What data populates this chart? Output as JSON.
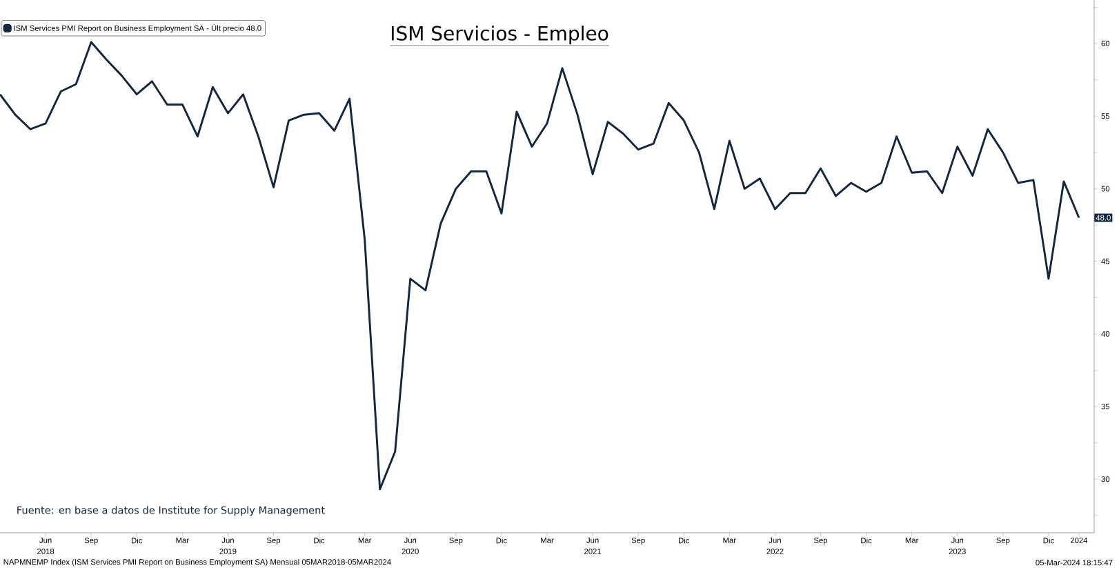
{
  "chart_data": {
    "type": "line",
    "title": "ISM Servicios - Empleo",
    "x": [
      "2018-03",
      "2018-04",
      "2018-05",
      "2018-06",
      "2018-07",
      "2018-08",
      "2018-09",
      "2018-10",
      "2018-11",
      "2018-12",
      "2019-01",
      "2019-02",
      "2019-03",
      "2019-04",
      "2019-05",
      "2019-06",
      "2019-07",
      "2019-08",
      "2019-09",
      "2019-10",
      "2019-11",
      "2019-12",
      "2020-01",
      "2020-02",
      "2020-03",
      "2020-04",
      "2020-05",
      "2020-06",
      "2020-07",
      "2020-08",
      "2020-09",
      "2020-10",
      "2020-11",
      "2020-12",
      "2021-01",
      "2021-02",
      "2021-03",
      "2021-04",
      "2021-05",
      "2021-06",
      "2021-07",
      "2021-08",
      "2021-09",
      "2021-10",
      "2021-11",
      "2021-12",
      "2022-01",
      "2022-02",
      "2022-03",
      "2022-04",
      "2022-05",
      "2022-06",
      "2022-07",
      "2022-08",
      "2022-09",
      "2022-10",
      "2022-11",
      "2022-12",
      "2023-01",
      "2023-02",
      "2023-03",
      "2023-04",
      "2023-05",
      "2023-06",
      "2023-07",
      "2023-08",
      "2023-09",
      "2023-10",
      "2023-11",
      "2023-12",
      "2024-01",
      "2024-02"
    ],
    "series": [
      {
        "name": "ISM Services PMI Report on Business Employment SA - Últ precio 48.0",
        "color": "#13283f",
        "values": [
          56.5,
          55.1,
          54.1,
          54.5,
          56.7,
          57.2,
          60.1,
          58.9,
          57.8,
          56.5,
          57.4,
          55.8,
          55.8,
          53.6,
          57.0,
          55.2,
          56.5,
          53.6,
          50.1,
          54.7,
          55.1,
          55.2,
          54.0,
          56.2,
          46.5,
          29.3,
          31.9,
          43.8,
          43.0,
          47.6,
          50.0,
          51.2,
          51.2,
          48.3,
          55.3,
          52.9,
          54.5,
          58.3,
          55.1,
          51.0,
          54.6,
          53.8,
          52.7,
          53.1,
          55.9,
          54.7,
          52.5,
          48.6,
          53.3,
          50.0,
          50.7,
          48.6,
          49.7,
          49.7,
          51.4,
          49.5,
          50.4,
          49.8,
          50.4,
          53.6,
          51.1,
          51.2,
          49.7,
          52.9,
          50.9,
          54.1,
          52.5,
          50.4,
          50.6,
          43.8,
          50.5,
          48.0
        ]
      }
    ],
    "xlim": [
      "2018-03",
      "2024-03"
    ],
    "ylim": [
      26.3,
      63
    ],
    "yticks": [
      {
        "value": 27.5,
        "label": null
      },
      30,
      {
        "value": 32.5,
        "label": null
      },
      35,
      {
        "value": 37.5,
        "label": null
      },
      40,
      {
        "value": 42.5,
        "label": null
      },
      45,
      {
        "value": 47.5,
        "label": null
      },
      50,
      {
        "value": 52.5,
        "label": null
      },
      55,
      {
        "value": 57.5,
        "label": null
      },
      60,
      {
        "value": 62.5,
        "label": null
      }
    ],
    "xticks": [
      {
        "value": "2018-06",
        "label": "Jun 2018"
      },
      {
        "value": "2018-09",
        "label": "Sep"
      },
      {
        "value": "2018-12",
        "label": "Dic"
      },
      {
        "value": "2019-03",
        "label": "Mar"
      },
      {
        "value": "2019-06",
        "label": "Jun 2019"
      },
      {
        "value": "2019-09",
        "label": "Sep"
      },
      {
        "value": "2019-12",
        "label": "Dic"
      },
      {
        "value": "2020-03",
        "label": "Mar"
      },
      {
        "value": "2020-06",
        "label": "Jun 2020"
      },
      {
        "value": "2020-09",
        "label": "Sep"
      },
      {
        "value": "2020-12",
        "label": "Dic"
      },
      {
        "value": "2021-03",
        "label": "Mar"
      },
      {
        "value": "2021-06",
        "label": "Jun 2021"
      },
      {
        "value": "2021-09",
        "label": "Sep"
      },
      {
        "value": "2021-12",
        "label": "Dic"
      },
      {
        "value": "2022-03",
        "label": "Mar"
      },
      {
        "value": "2022-06",
        "label": "Jun 2022"
      },
      {
        "value": "2022-09",
        "label": "Sep"
      },
      {
        "value": "2022-12",
        "label": "Dic"
      },
      {
        "value": "2023-03",
        "label": "Mar"
      },
      {
        "value": "2023-06",
        "label": "Jun 2023"
      },
      {
        "value": "2023-09",
        "label": "Sep"
      },
      {
        "value": "2023-12",
        "label": "Dic"
      },
      {
        "value": "2024-02",
        "label": "2024"
      }
    ],
    "legend": "top left",
    "marker": "none",
    "line_style": "solid",
    "annotations": [
      "Fuente: en base a datos de Institute for Supply Management",
      "NAPMNEMP Index (ISM Services PMI Report on Business Employment SA)  Mensual 05MAR2018-05MAR2024",
      "05-Mar-2024 18:15:47",
      {
        "text": "48.0",
        "x": "2024-02",
        "y": 48.0
      }
    ]
  }
}
